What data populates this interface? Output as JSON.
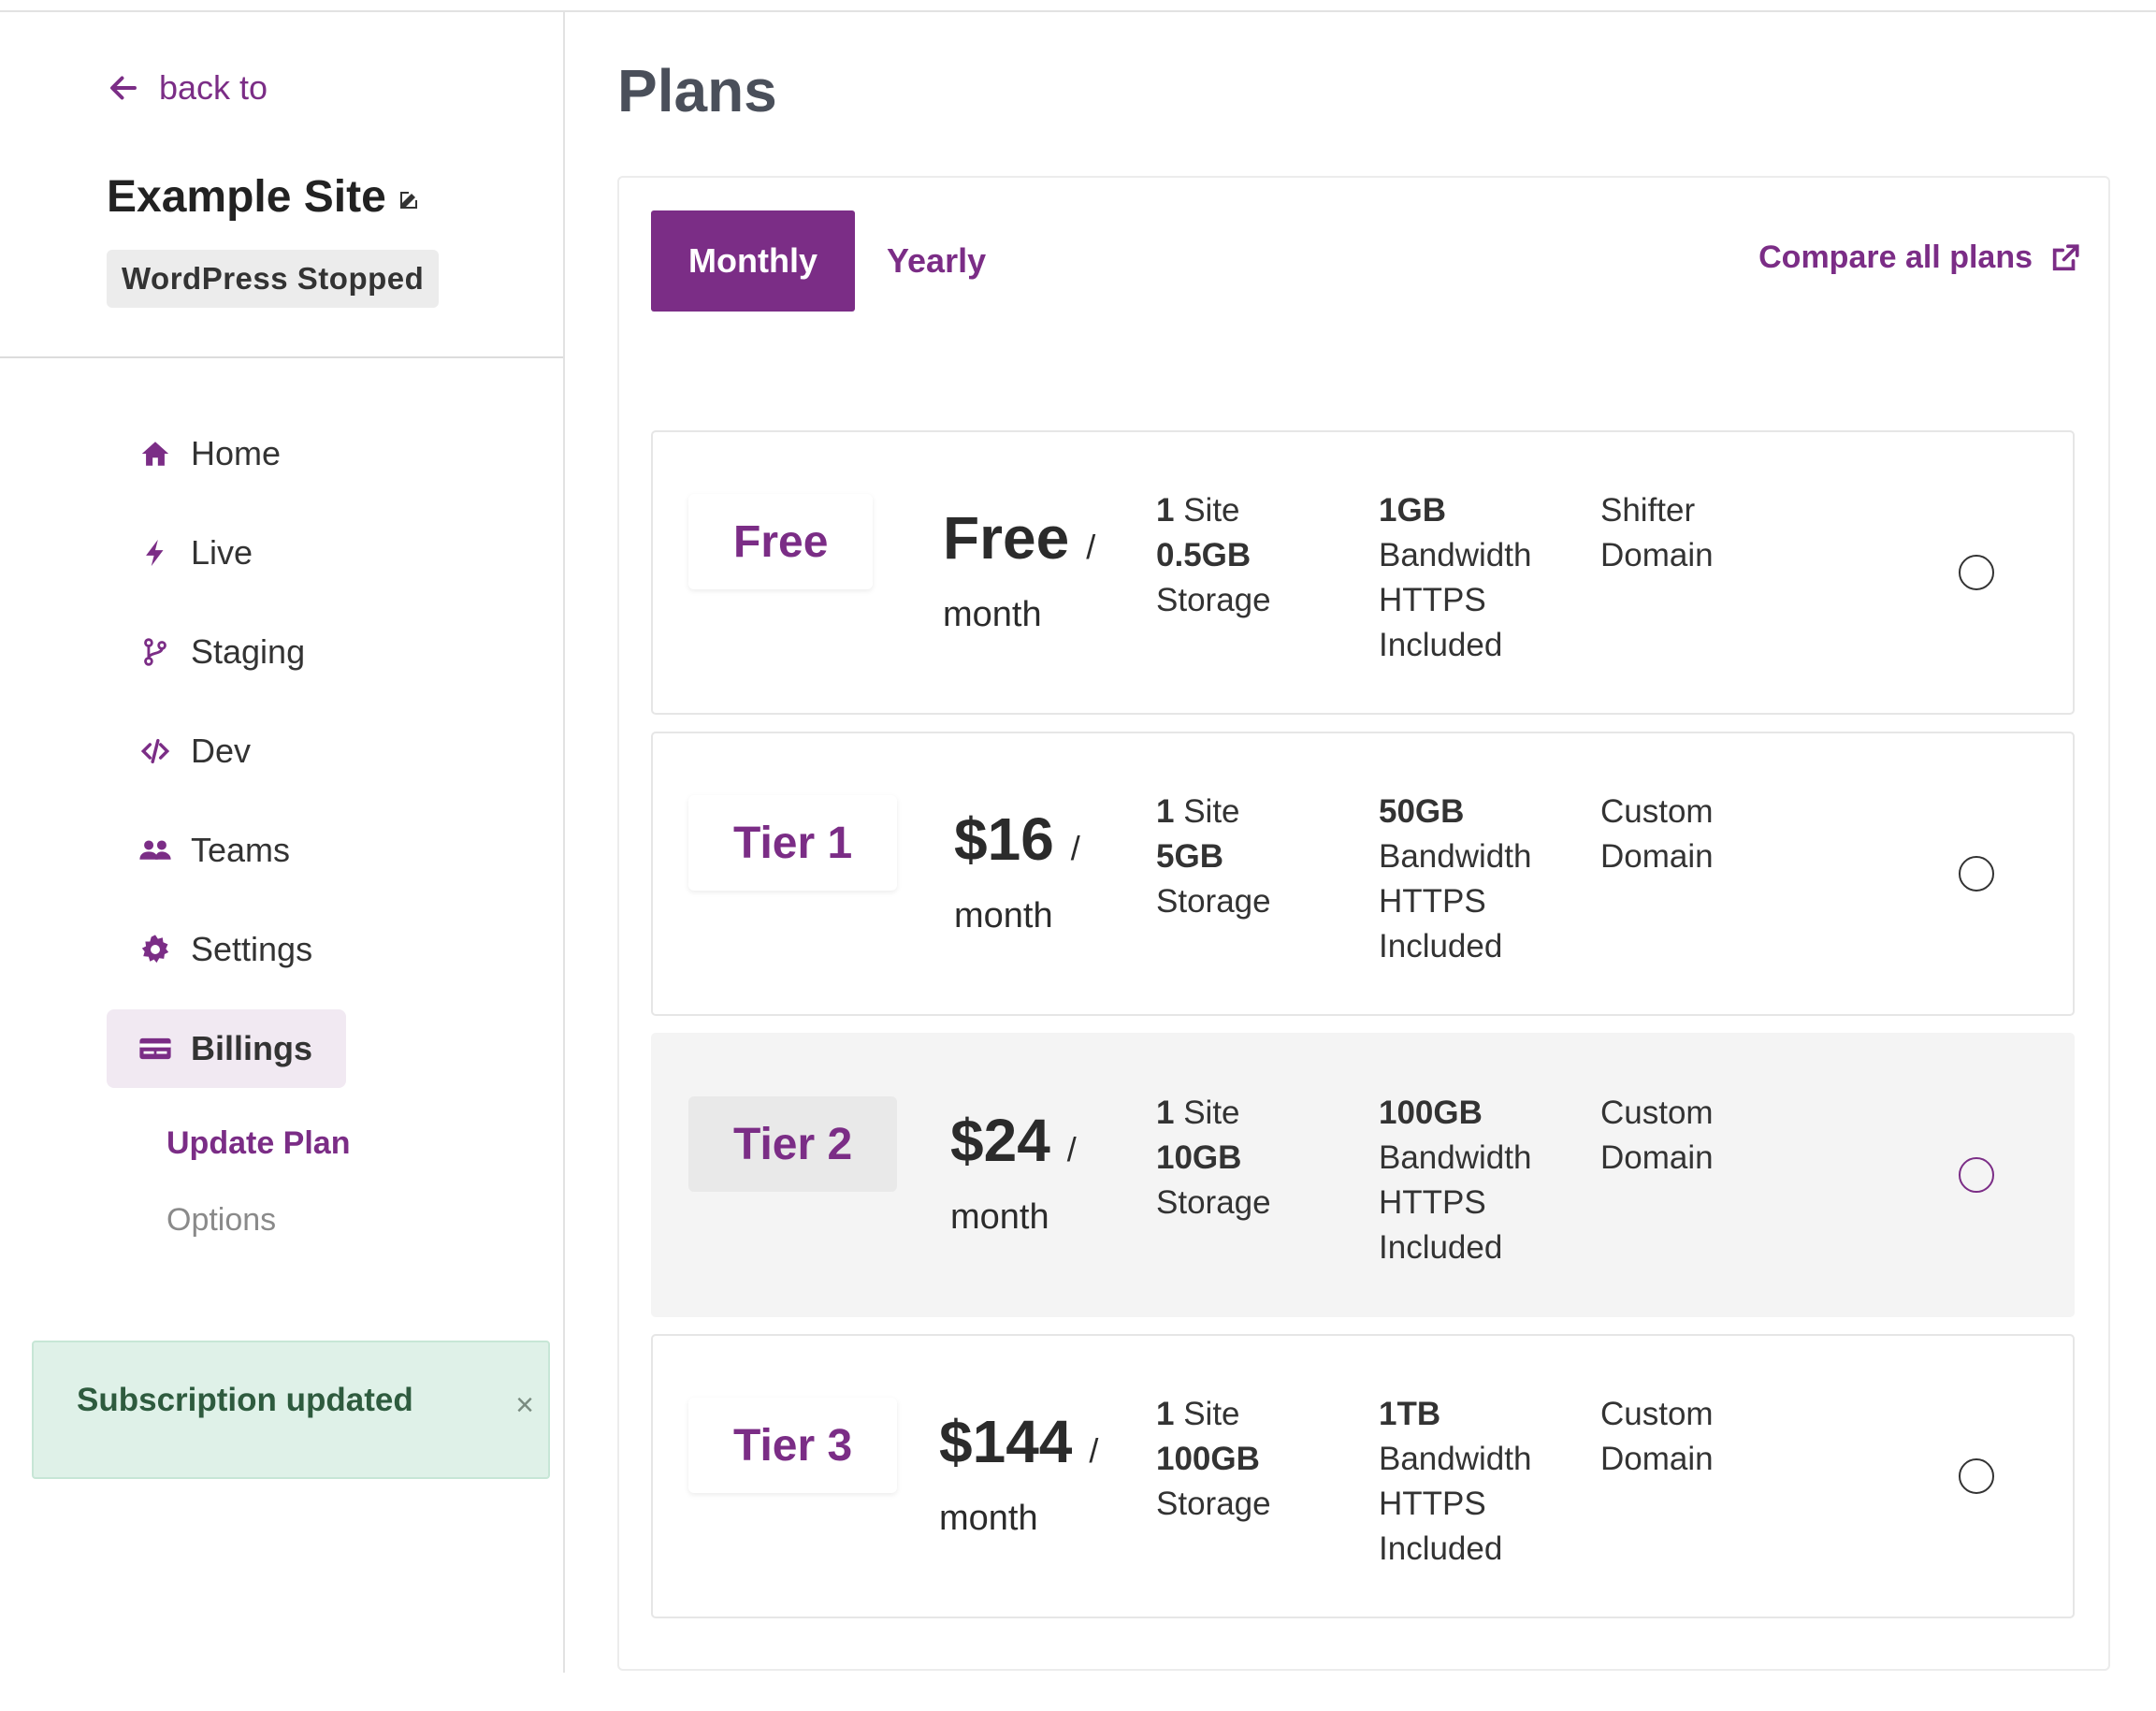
{
  "sidebar": {
    "back_label": "back to",
    "site_title": "Example Site",
    "status_badge": "WordPress Stopped",
    "nav": [
      {
        "label": "Home",
        "icon": "home-icon"
      },
      {
        "label": "Live",
        "icon": "bolt-icon"
      },
      {
        "label": "Staging",
        "icon": "branch-icon"
      },
      {
        "label": "Dev",
        "icon": "code-icon"
      },
      {
        "label": "Teams",
        "icon": "users-icon"
      },
      {
        "label": "Settings",
        "icon": "gear-icon"
      },
      {
        "label": "Billings",
        "icon": "billing-icon",
        "active": true
      }
    ],
    "sub_items": [
      {
        "label": "Update Plan",
        "active": true
      },
      {
        "label": "Options",
        "active": false
      }
    ],
    "toast": {
      "message": "Subscription updated",
      "close": "×"
    }
  },
  "main": {
    "title": "Plans",
    "tabs": [
      {
        "label": "Monthly",
        "active": true
      },
      {
        "label": "Yearly",
        "active": false
      }
    ],
    "compare_label": "Compare all plans",
    "plans": [
      {
        "name": "Free",
        "price": "Free",
        "slash": "/",
        "period": "month",
        "sites": "1",
        "sites_unit": "Site",
        "storage": "0.5GB",
        "storage_label": "Storage",
        "bandwidth": "1GB",
        "bandwidth_label": "Bandwidth",
        "https": "HTTPS",
        "https_sub": "Included",
        "domain_1": "Shifter",
        "domain_2": "Domain",
        "selected": false
      },
      {
        "name": "Tier 1",
        "price": "$16",
        "slash": "/",
        "period": "month",
        "sites": "1",
        "sites_unit": "Site",
        "storage": "5GB",
        "storage_label": "Storage",
        "bandwidth": "50GB",
        "bandwidth_label": "Bandwidth",
        "https": "HTTPS",
        "https_sub": "Included",
        "domain_1": "Custom",
        "domain_2": "Domain",
        "selected": false
      },
      {
        "name": "Tier 2",
        "price": "$24",
        "slash": "/",
        "period": "month",
        "sites": "1",
        "sites_unit": "Site",
        "storage": "10GB",
        "storage_label": "Storage",
        "bandwidth": "100GB",
        "bandwidth_label": "Bandwidth",
        "https": "HTTPS",
        "https_sub": "Included",
        "domain_1": "Custom",
        "domain_2": "Domain",
        "selected": true
      },
      {
        "name": "Tier 3",
        "price": "$144",
        "slash": "/",
        "period": "month",
        "sites": "1",
        "sites_unit": "Site",
        "storage": "100GB",
        "storage_label": "Storage",
        "bandwidth": "1TB",
        "bandwidth_label": "Bandwidth",
        "https": "HTTPS",
        "https_sub": "Included",
        "domain_1": "Custom",
        "domain_2": "Domain",
        "selected": false
      }
    ]
  },
  "colors": {
    "accent": "#7b2d86",
    "toast_bg": "#dff1e8",
    "toast_text": "#2e5b3e"
  }
}
